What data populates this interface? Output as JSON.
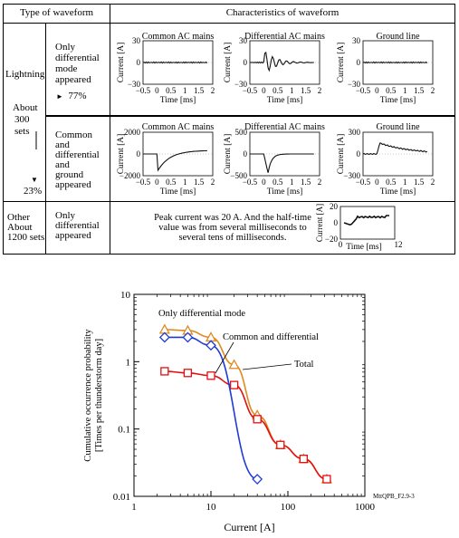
{
  "table": {
    "header": {
      "type": "Type of waveform",
      "characteristics": "Characteristics of waveform"
    },
    "lightning": {
      "label": "Lightning",
      "about_line1": "About",
      "about_line2": "300",
      "about_line3": "sets",
      "pct_upper": "77%",
      "pct_lower": "23%",
      "rows": [
        {
          "desc": [
            "Only",
            "differential",
            "mode",
            "appeared"
          ],
          "plots": [
            {
              "title": "Common AC mains",
              "ylabel": "Current [A]",
              "xlabel": "Time [ms]",
              "yticks": [
                "30",
                "0",
                "−30"
              ],
              "xticks": [
                "−0.5",
                "0",
                "0.5",
                "1",
                "1.5",
                "2"
              ]
            },
            {
              "title": "Differential AC mains",
              "ylabel": "Current [A]",
              "xlabel": "Time [ms]",
              "yticks": [
                "30",
                "0",
                "−30"
              ],
              "xticks": [
                "−0.5",
                "0",
                "0.5",
                "1",
                "1.5",
                "2"
              ]
            },
            {
              "title": "Ground line",
              "ylabel": "Current [A]",
              "xlabel": "Time [ms]",
              "yticks": [
                "30",
                "0",
                "−30"
              ],
              "xticks": [
                "−0.5",
                "0",
                "0.5",
                "1",
                "1.5",
                "2"
              ]
            }
          ]
        },
        {
          "desc": [
            "Common",
            "and",
            "differential",
            "and",
            "ground",
            "appeared"
          ],
          "plots": [
            {
              "title": "Common AC mains",
              "ylabel": "Current [A]",
              "xlabel": "Time [ms]",
              "yticks": [
                "2000",
                "0",
                "−2000"
              ],
              "xticks": [
                "−0.5",
                "0",
                "0.5",
                "1",
                "1.5",
                "2"
              ]
            },
            {
              "title": "Differential AC mains",
              "ylabel": "Current [A]",
              "xlabel": "Time [ms]",
              "yticks": [
                "500",
                "0",
                "−500"
              ],
              "xticks": [
                "−0.5",
                "0",
                "0.5",
                "1",
                "1.5",
                "2"
              ]
            },
            {
              "title": "Ground line",
              "ylabel": "Current [A]",
              "xlabel": "Time [ms]",
              "yticks": [
                "300",
                "0",
                "−300"
              ],
              "xticks": [
                "−0.5",
                "0",
                "0.5",
                "1",
                "1.5",
                "2"
              ]
            }
          ]
        }
      ]
    },
    "other": {
      "label": [
        "Other",
        "About",
        "1200 sets"
      ],
      "desc": [
        "Only",
        "differential",
        "appeared"
      ],
      "text": [
        "Peak current was 20 A. And the half-time",
        "value was from several milliseconds to",
        "several tens of milliseconds."
      ],
      "plot": {
        "ylabel": "Current [A]",
        "xlabel": "Time [ms]",
        "yticks": [
          "20",
          "0",
          "−20"
        ],
        "xticks": [
          "0",
          "12"
        ]
      }
    }
  },
  "chart_data": {
    "type": "line",
    "x_scale": "log",
    "y_scale": "log",
    "xlim": [
      1,
      1000
    ],
    "ylim": [
      0.01,
      10
    ],
    "xlabel": "Current [A]",
    "ylabel_line1": "Cumulative occurrence probability",
    "ylabel_line2": "[Times per thunderstorm day]",
    "xticks": [
      "1",
      "10",
      "100",
      "1000"
    ],
    "yticks": [
      "10",
      "1",
      "0.1",
      "0.01"
    ],
    "series": [
      {
        "name": "Only differential mode",
        "marker": "diamond",
        "color": "#1f3bd6",
        "x": [
          2.5,
          5,
          10,
          40
        ],
        "y": [
          2.3,
          2.3,
          1.75,
          0.018
        ]
      },
      {
        "name": "Common and differential",
        "marker": "square",
        "color": "#e01010",
        "x": [
          2.5,
          5,
          10,
          20,
          40,
          80,
          160,
          320
        ],
        "y": [
          0.72,
          0.68,
          0.62,
          0.45,
          0.14,
          0.058,
          0.036,
          0.018
        ]
      },
      {
        "name": "Total",
        "marker": "triangle",
        "color": "#e08a20",
        "x": [
          2.5,
          5,
          10,
          20,
          40,
          80,
          160,
          320
        ],
        "y": [
          3.0,
          2.9,
          2.3,
          0.9,
          0.16,
          0.058,
          0.036,
          0.018
        ]
      }
    ],
    "annotations": [
      "Only differential mode",
      "Common and differential",
      "Total"
    ],
    "tag": "MttQPB_F2.9-3"
  }
}
